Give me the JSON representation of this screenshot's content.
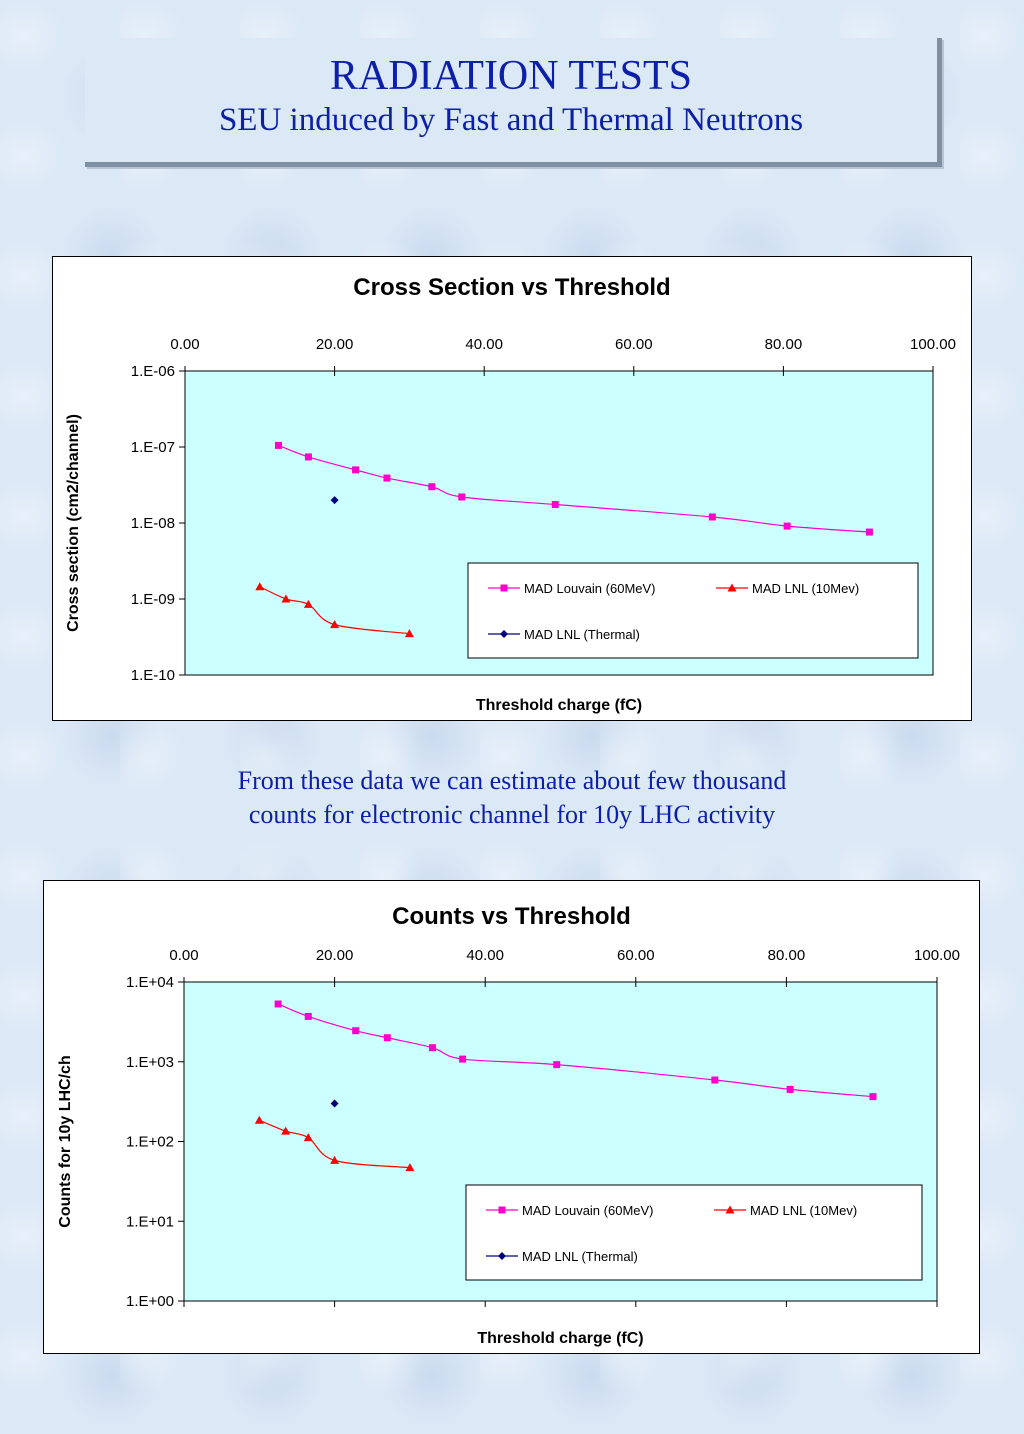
{
  "header": {
    "title": "RADIATION TESTS",
    "subtitle": "SEU induced by Fast and Thermal Neutrons"
  },
  "note": {
    "line1": "From these data we can estimate about few thousand",
    "line2": "counts for electronic channel for 10y LHC activity"
  },
  "colors": {
    "plot_bg": "#ccffff",
    "louvain": "#ff00cc",
    "lnl10": "#ff0000",
    "thermal": "#000080",
    "title_text": "#0c1fa8"
  },
  "chart_data": [
    {
      "type": "line",
      "title": "Cross Section vs Threshold",
      "xlabel": "Threshold charge (fC)",
      "ylabel": "Cross section (cm2/channel)",
      "xlim": [
        0,
        100
      ],
      "ylim": [
        1e-10,
        1e-06
      ],
      "yscale": "log",
      "x_axis_position": "top",
      "x_tick_labels": [
        "0.00",
        "20.00",
        "40.00",
        "60.00",
        "80.00",
        "100.00"
      ],
      "y_tick_labels": [
        "1.E-10",
        "1.E-09",
        "1.E-08",
        "1.E-07",
        "1.E-06"
      ],
      "legend_placement": "bottom-right",
      "series": [
        {
          "name": "MAD Louvain (60MeV)",
          "marker": "square",
          "color": "#ff00cc",
          "line": true,
          "x": [
            12.5,
            16.5,
            22.8,
            27,
            33,
            37,
            49.5,
            70.5,
            80.5,
            91.5
          ],
          "y": [
            1.05e-07,
            7.4e-08,
            5e-08,
            3.9e-08,
            3e-08,
            2.2e-08,
            1.75e-08,
            1.2e-08,
            9.1e-09,
            7.6e-09
          ]
        },
        {
          "name": "MAD LNL (10Mev)",
          "marker": "triangle",
          "color": "#ff0000",
          "line": true,
          "x": [
            10,
            13.5,
            16.5,
            20,
            30
          ],
          "y": [
            1.45e-09,
            1e-09,
            8.5e-10,
            4.6e-10,
            3.5e-10
          ]
        },
        {
          "name": "MAD LNL (Thermal)",
          "marker": "diamond",
          "color": "#000080",
          "line": false,
          "x": [
            20
          ],
          "y": [
            2e-08
          ]
        }
      ]
    },
    {
      "type": "line",
      "title": "Counts vs Threshold",
      "xlabel": "Threshold charge (fC)",
      "ylabel": "Counts for 10y LHC/ch",
      "xlim": [
        0,
        100
      ],
      "ylim": [
        1,
        10000
      ],
      "yscale": "log",
      "x_axis_position": "top",
      "x_tick_labels": [
        "0.00",
        "20.00",
        "40.00",
        "60.00",
        "80.00",
        "100.00"
      ],
      "y_tick_labels": [
        "1.E+00",
        "1.E+01",
        "1.E+02",
        "1.E+03",
        "1.E+04"
      ],
      "legend_placement": "bottom-right",
      "series": [
        {
          "name": "MAD Louvain (60MeV)",
          "marker": "square",
          "color": "#ff00cc",
          "line": true,
          "x": [
            12.5,
            16.5,
            22.8,
            27,
            33,
            37,
            49.5,
            70.5,
            80.5,
            91.5
          ],
          "y": [
            5300,
            3700,
            2450,
            2000,
            1500,
            1080,
            920,
            590,
            450,
            365
          ]
        },
        {
          "name": "MAD LNL (10Mev)",
          "marker": "triangle",
          "color": "#ff0000",
          "line": true,
          "x": [
            10,
            13.5,
            16.5,
            20,
            30
          ],
          "y": [
            185,
            135,
            112,
            58,
            47
          ]
        },
        {
          "name": "MAD LNL (Thermal)",
          "marker": "diamond",
          "color": "#000080",
          "line": false,
          "x": [
            20
          ],
          "y": [
            300
          ]
        }
      ]
    }
  ]
}
